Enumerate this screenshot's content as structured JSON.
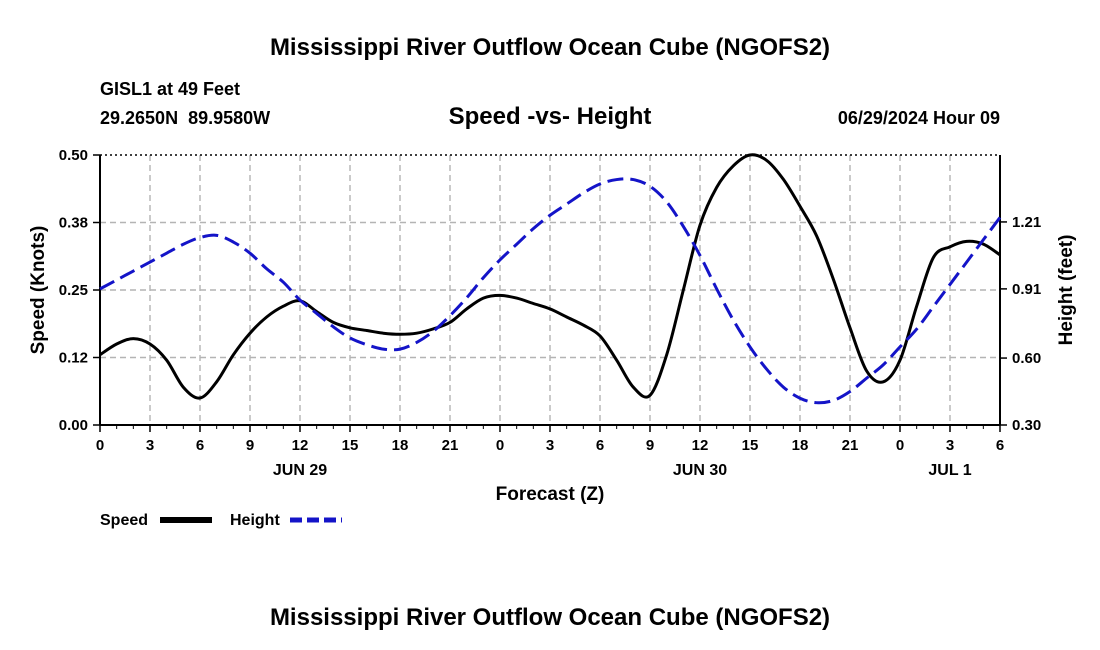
{
  "header": {
    "main_title": "Mississippi River Outflow Ocean Cube (NGOFS2)",
    "station_name": "GISL1 at 49 Feet",
    "station_coords": "29.2650N  89.9580W",
    "chart_title": "Speed -vs- Height",
    "timestamp": "06/29/2024 Hour 09"
  },
  "footer": {
    "repeated_title": "Mississippi River Outflow Ocean Cube (NGOFS2)"
  },
  "colors": {
    "speed": "#000000",
    "height": "#1414c8",
    "grid": "#b4b4b4"
  },
  "chart_data": {
    "type": "line",
    "title": "Speed -vs- Height",
    "xlabel": "Forecast (Z)",
    "ylabel_left": "Speed (Knots)",
    "ylabel_right": "Height (feet)",
    "x_range_hours": [
      0,
      54
    ],
    "x_ticks": [
      0,
      3,
      6,
      9,
      12,
      15,
      18,
      21,
      24,
      27,
      30,
      33,
      36,
      39,
      42,
      45,
      48,
      51,
      54
    ],
    "x_tick_labels": [
      "0",
      "3",
      "6",
      "9",
      "12",
      "15",
      "18",
      "21",
      "0",
      "3",
      "6",
      "9",
      "12",
      "15",
      "18",
      "21",
      "0",
      "3",
      "6"
    ],
    "day_labels": [
      {
        "label": "JUN 29",
        "hour": 12
      },
      {
        "label": "JUN 30",
        "hour": 36
      },
      {
        "label": "JUL 1",
        "hour": 51
      }
    ],
    "ylim_left": [
      0,
      0.5
    ],
    "y_ticks_left": [
      0,
      0.125,
      0.25,
      0.375,
      0.5
    ],
    "y_tick_labels_left": [
      "0.00",
      "0.12",
      "0.25",
      "0.38",
      "0.50"
    ],
    "ylim_right": [
      0.3,
      1.51
    ],
    "y_ticks_right": [
      0.3,
      0.6,
      0.91,
      1.21
    ],
    "y_tick_labels_right": [
      "0.30",
      "0.60",
      "0.91",
      "1.21"
    ],
    "grid": true,
    "legend": [
      "Speed",
      "Height"
    ],
    "series": [
      {
        "name": "Speed",
        "axis": "left",
        "style": "solid",
        "x": [
          0,
          1,
          2,
          3,
          4,
          5,
          6,
          7,
          8,
          9,
          10,
          11,
          12,
          13,
          14,
          15,
          16,
          17,
          18,
          19,
          20,
          21,
          22,
          23,
          24,
          25,
          26,
          27,
          28,
          29,
          30,
          31,
          32,
          33,
          34,
          35,
          36,
          37,
          38,
          39,
          40,
          41,
          42,
          43,
          44,
          45,
          46,
          47,
          48,
          49,
          50,
          51,
          52,
          53,
          54
        ],
        "values": [
          0.13,
          0.15,
          0.16,
          0.15,
          0.12,
          0.07,
          0.05,
          0.08,
          0.13,
          0.17,
          0.2,
          0.22,
          0.23,
          0.21,
          0.19,
          0.18,
          0.175,
          0.17,
          0.168,
          0.17,
          0.178,
          0.19,
          0.215,
          0.235,
          0.24,
          0.235,
          0.225,
          0.215,
          0.2,
          0.185,
          0.165,
          0.12,
          0.07,
          0.055,
          0.13,
          0.25,
          0.37,
          0.44,
          0.48,
          0.5,
          0.49,
          0.455,
          0.405,
          0.35,
          0.27,
          0.18,
          0.1,
          0.08,
          0.12,
          0.22,
          0.31,
          0.33,
          0.34,
          0.335,
          0.315
        ]
      },
      {
        "name": "Height",
        "axis": "right",
        "style": "dashed",
        "x": [
          0,
          1,
          2,
          3,
          4,
          5,
          6,
          7,
          8,
          9,
          10,
          11,
          12,
          13,
          14,
          15,
          16,
          17,
          18,
          19,
          20,
          21,
          22,
          23,
          24,
          25,
          26,
          27,
          28,
          29,
          30,
          31,
          32,
          33,
          34,
          35,
          36,
          37,
          38,
          39,
          40,
          41,
          42,
          43,
          44,
          45,
          46,
          47,
          48,
          49,
          50,
          51,
          52,
          53,
          54
        ],
        "values": [
          0.91,
          0.95,
          0.99,
          1.03,
          1.07,
          1.11,
          1.14,
          1.15,
          1.12,
          1.07,
          1.0,
          0.94,
          0.86,
          0.8,
          0.74,
          0.69,
          0.66,
          0.64,
          0.64,
          0.67,
          0.72,
          0.79,
          0.87,
          0.96,
          1.04,
          1.11,
          1.18,
          1.24,
          1.29,
          1.34,
          1.38,
          1.4,
          1.4,
          1.37,
          1.3,
          1.19,
          1.06,
          0.91,
          0.77,
          0.65,
          0.55,
          0.47,
          0.42,
          0.4,
          0.41,
          0.45,
          0.51,
          0.57,
          0.65,
          0.73,
          0.83,
          0.93,
          1.03,
          1.13,
          1.23
        ]
      }
    ]
  }
}
